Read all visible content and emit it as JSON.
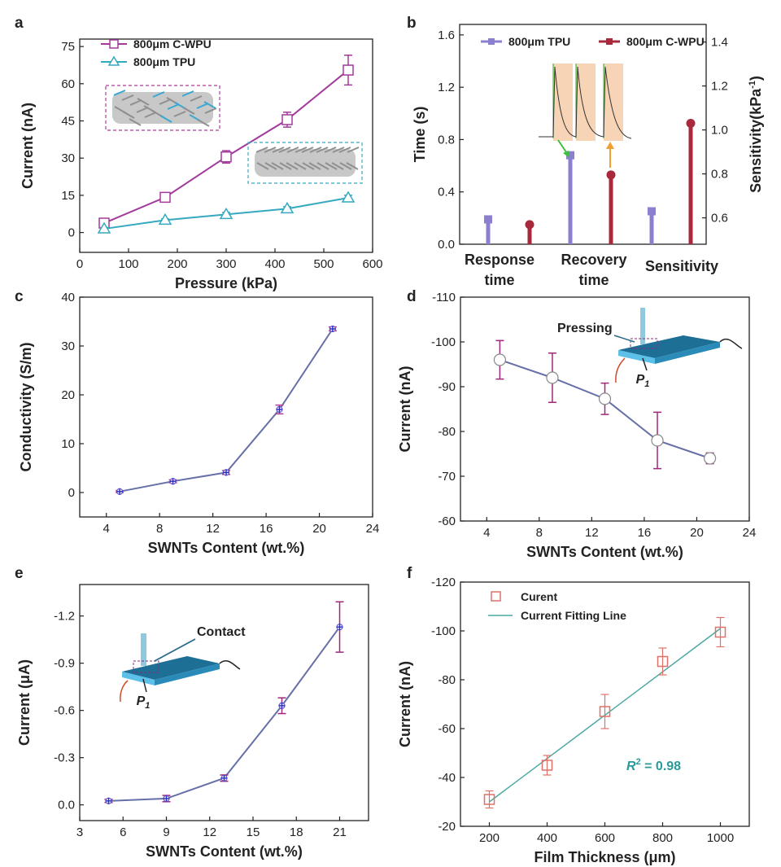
{
  "chart_data": [
    {
      "panel": "a",
      "type": "line",
      "xlabel": "Pressure (kPa)",
      "ylabel": "Current (nA)",
      "xlim": [
        0,
        600
      ],
      "ylim": [
        -8,
        78
      ],
      "xticks": [
        "0",
        "100",
        "200",
        "300",
        "400",
        "500",
        "600"
      ],
      "yticks": [
        "0",
        "15",
        "30",
        "45",
        "60",
        "75"
      ],
      "series": [
        {
          "name": "800μm C-WPU",
          "color": "#a23a9c",
          "marker": "square",
          "x": [
            50,
            175,
            300,
            425,
            550
          ],
          "y": [
            3.8,
            14.2,
            30.5,
            45.5,
            65.5
          ],
          "err": [
            0.8,
            1.5,
            2.5,
            3,
            6
          ]
        },
        {
          "name": "800μm TPU",
          "color": "#35a9c0",
          "marker": "triangle",
          "x": [
            50,
            175,
            300,
            425,
            550
          ],
          "y": [
            1.5,
            5,
            7.3,
            9.6,
            14
          ],
          "err": [
            0.5,
            0.5,
            0.8,
            0.8,
            1
          ]
        }
      ]
    },
    {
      "panel": "b",
      "type": "bar",
      "ylabel": "Time (s)",
      "y2label": "Sensitivity(kPa",
      "y2label_sup": "-1",
      "y2label_end": ")",
      "ylim": [
        0,
        1.68
      ],
      "y2lim": [
        0.48,
        1.48
      ],
      "yticks": [
        "0.0",
        "0.4",
        "0.8",
        "1.2",
        "1.6"
      ],
      "y2ticks": [
        "0.6",
        "0.8",
        "1.0",
        "1.2",
        "1.4"
      ],
      "cat1": [
        "Response",
        "time"
      ],
      "cat2": [
        "Recovery",
        "time"
      ],
      "cat3": "Sensitivity",
      "series": [
        {
          "name": "800μm TPU",
          "color": "#8b7fd0",
          "time": [
            0.19,
            0.68
          ],
          "sensitivity": 0.63
        },
        {
          "name": "800μm C-WPU",
          "color": "#a8283c",
          "time": [
            0.15,
            0.53
          ],
          "sensitivity": 1.03
        }
      ]
    },
    {
      "panel": "c",
      "type": "line",
      "xlabel": "SWNTs Content  (wt.%)",
      "ylabel": "Conductivity (S/m)",
      "xlim": [
        2,
        24
      ],
      "ylim": [
        -5,
        40
      ],
      "xticks": [
        "4",
        "8",
        "12",
        "16",
        "20",
        "24"
      ],
      "yticks": [
        "0",
        "10",
        "20",
        "30",
        "40"
      ],
      "series": [
        {
          "name": "Conductivity",
          "color": "#6570a8",
          "x": [
            5,
            9,
            13,
            17,
            21
          ],
          "y": [
            0.2,
            2.3,
            4.1,
            17,
            33.5
          ],
          "err": [
            0.2,
            0.3,
            0.4,
            0.9,
            0.4
          ]
        }
      ]
    },
    {
      "panel": "d",
      "type": "line",
      "xlabel": "SWNTs Content (wt.%)",
      "ylabel": "Current (nA)",
      "xlim": [
        2,
        24
      ],
      "ylim": [
        -60,
        -110
      ],
      "xticks": [
        "4",
        "8",
        "12",
        "16",
        "20",
        "24"
      ],
      "yticks": [
        "-60",
        "-70",
        "-80",
        "-90",
        "-100",
        "-110"
      ],
      "annotation": "Pressing",
      "p_label": "P",
      "p_sub": "1",
      "series": [
        {
          "name": "Current",
          "color": "#6570a8",
          "x": [
            5,
            9,
            13,
            17,
            21
          ],
          "y": [
            -96,
            -92,
            -87.3,
            -78,
            -74
          ],
          "err": [
            4.3,
            5.5,
            3.5,
            6.3,
            1.2
          ]
        }
      ]
    },
    {
      "panel": "e",
      "type": "line",
      "xlabel": "SWNTs Content (wt.%)",
      "ylabel": "Current (μA)",
      "xlim": [
        3,
        23
      ],
      "ylim": [
        0.1,
        -1.4
      ],
      "xticks": [
        "3",
        "6",
        "9",
        "12",
        "15",
        "18",
        "21"
      ],
      "yticks": [
        "0.0",
        "-0.3",
        "-0.6",
        "-0.9",
        "-1.2"
      ],
      "annotation": "Contact",
      "p_label": "P",
      "p_sub": "1",
      "series": [
        {
          "name": "Current",
          "color": "#6570a8",
          "x": [
            5,
            9,
            13,
            17,
            21
          ],
          "y": [
            -0.025,
            -0.04,
            -0.17,
            -0.63,
            -1.13
          ],
          "err": [
            0.01,
            0.02,
            0.02,
            0.05,
            0.16
          ]
        }
      ]
    },
    {
      "panel": "f",
      "type": "scatter",
      "xlabel": "Film Thickness (μm)",
      "ylabel": "Current (nA)",
      "xlim": [
        100,
        1100
      ],
      "ylim": [
        -20,
        -120
      ],
      "xticks": [
        "200",
        "400",
        "600",
        "800",
        "1000"
      ],
      "yticks": [
        "-20",
        "-40",
        "-60",
        "-80",
        "-100",
        "-120"
      ],
      "legend": [
        "Curent",
        "Current Fitting Line"
      ],
      "r2_prefix": "R",
      "r2_sup": "2",
      "r2_value": " = 0.98",
      "series": [
        {
          "name": "Curent",
          "color": "#e07068",
          "x": [
            200,
            400,
            600,
            800,
            1000
          ],
          "y": [
            -31,
            -45,
            -67,
            -87.5,
            -99.5
          ],
          "err": [
            3.5,
            4,
            7,
            5.5,
            6
          ]
        },
        {
          "name": "Current Fitting Line",
          "color": "#4aa8a0",
          "x": [
            200,
            1000
          ],
          "y": [
            -30,
            -101
          ]
        }
      ]
    }
  ]
}
